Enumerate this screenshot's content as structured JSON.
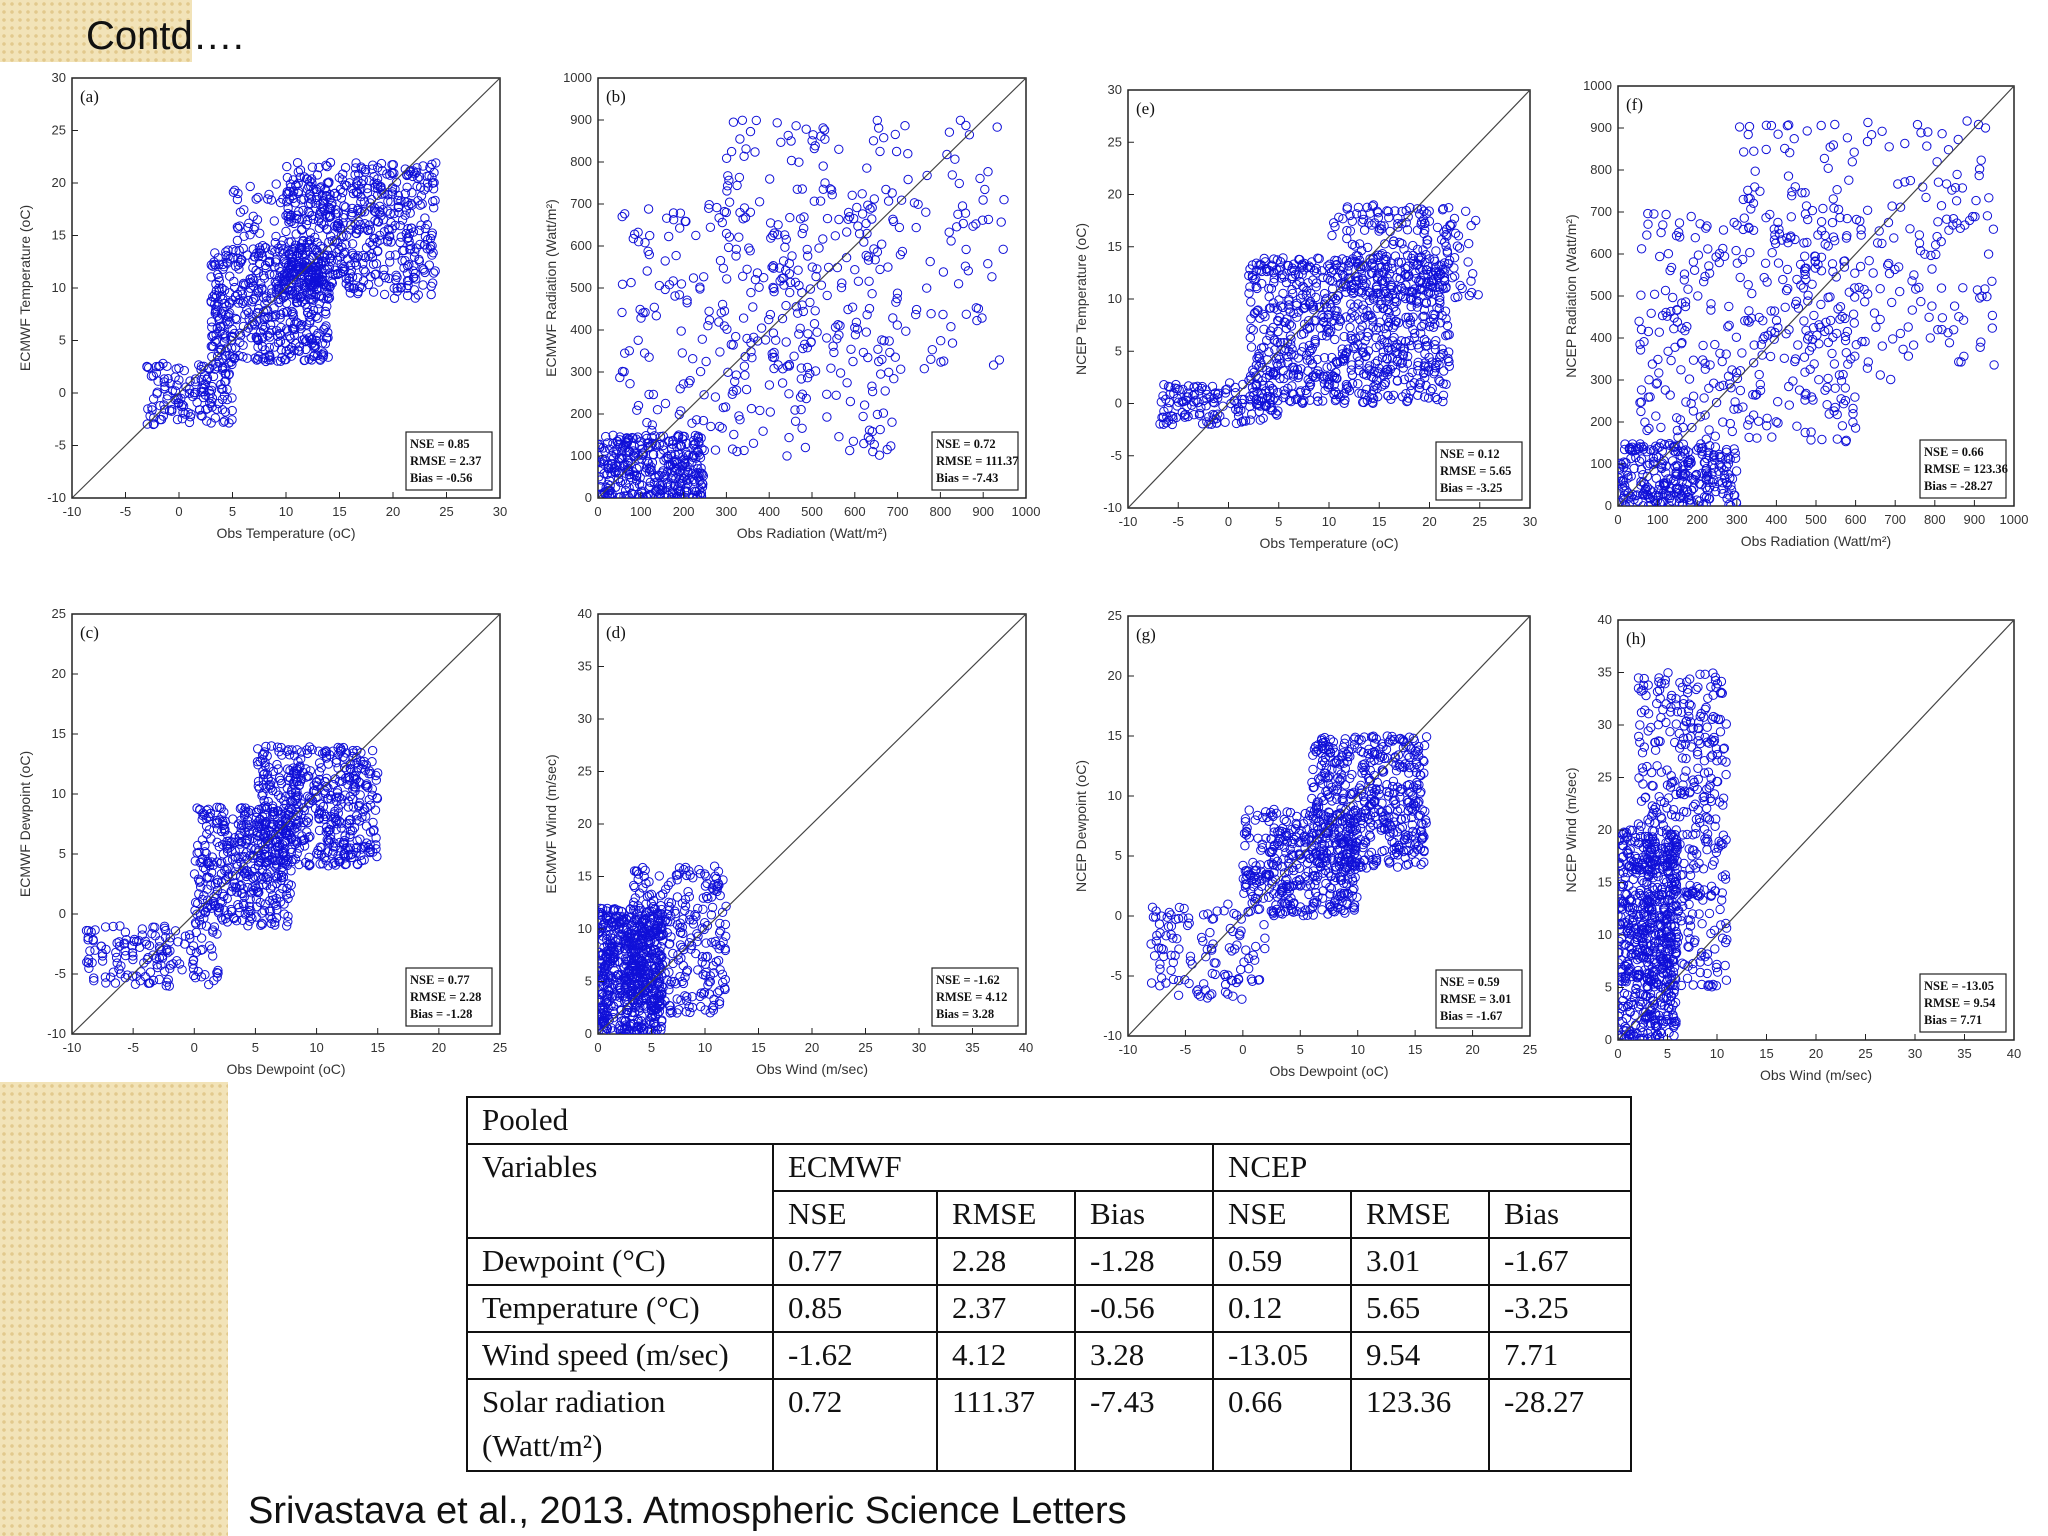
{
  "slide": {
    "title": "Contd….",
    "citation": "Srivastava et al., 2013.  Atmospheric Science Letters"
  },
  "chart_data": [
    {
      "id": "a",
      "type": "scatter",
      "panel_label": "(a)",
      "xlabel": "Obs Temperature (oC)",
      "ylabel": "ECMWF Temperature (oC)",
      "xlim": [
        -10,
        30
      ],
      "ylim": [
        -10,
        30
      ],
      "xticks": [
        -10,
        -5,
        0,
        5,
        10,
        15,
        20,
        25,
        30
      ],
      "yticks": [
        -10,
        -5,
        0,
        5,
        10,
        15,
        20,
        25,
        30
      ],
      "one_to_one_line": true,
      "marker_color": "#1010d8",
      "stats": [
        "NSE = 0.85",
        "RMSE = 2.37",
        "Bias = -0.56"
      ],
      "clusters": [
        {
          "x": [
            -3,
            5
          ],
          "y": [
            -3,
            3
          ],
          "n": 150
        },
        {
          "x": [
            3,
            14
          ],
          "y": [
            3,
            14
          ],
          "n": 500
        },
        {
          "x": [
            10,
            24
          ],
          "y": [
            9,
            22
          ],
          "n": 500
        },
        {
          "x": [
            5,
            18
          ],
          "y": [
            10,
            20
          ],
          "n": 150
        }
      ]
    },
    {
      "id": "b",
      "type": "scatter",
      "panel_label": "(b)",
      "xlabel": "Obs Radiation (Watt/m²)",
      "ylabel": "ECMWF Radiation (Watt/m²)",
      "xlim": [
        0,
        1000
      ],
      "ylim": [
        0,
        1000
      ],
      "xticks": [
        0,
        100,
        200,
        300,
        400,
        500,
        600,
        700,
        800,
        900,
        1000
      ],
      "yticks": [
        0,
        100,
        200,
        300,
        400,
        500,
        600,
        700,
        800,
        900,
        1000
      ],
      "one_to_one_line": true,
      "marker_color": "#1010d8",
      "stats": [
        "NSE = 0.72",
        "RMSE = 111.37",
        "Bias = -7.43"
      ],
      "clusters": [
        {
          "x": [
            0,
            250
          ],
          "y": [
            0,
            150
          ],
          "n": 350
        },
        {
          "x": [
            50,
            700
          ],
          "y": [
            100,
            700
          ],
          "n": 300
        },
        {
          "x": [
            300,
            950
          ],
          "y": [
            300,
            900
          ],
          "n": 200
        }
      ]
    },
    {
      "id": "c",
      "type": "scatter",
      "panel_label": "(c)",
      "xlabel": "Obs Dewpoint (oC)",
      "ylabel": "ECMWF Dewpoint (oC)",
      "xlim": [
        -10,
        25
      ],
      "ylim": [
        -10,
        25
      ],
      "xticks": [
        -10,
        -5,
        0,
        5,
        10,
        15,
        20,
        25
      ],
      "yticks": [
        -10,
        -5,
        0,
        5,
        10,
        15,
        20,
        25
      ],
      "one_to_one_line": true,
      "marker_color": "#1010d8",
      "stats": [
        "NSE = 0.77",
        "RMSE = 2.28",
        "Bias = -1.28"
      ],
      "clusters": [
        {
          "x": [
            -9,
            2
          ],
          "y": [
            -6,
            -1
          ],
          "n": 150
        },
        {
          "x": [
            0,
            8
          ],
          "y": [
            -1,
            9
          ],
          "n": 400
        },
        {
          "x": [
            5,
            15
          ],
          "y": [
            4,
            14
          ],
          "n": 500
        }
      ]
    },
    {
      "id": "d",
      "type": "scatter",
      "panel_label": "(d)",
      "xlabel": "Obs Wind (m/sec)",
      "ylabel": "ECMWF Wind (m/sec)",
      "xlim": [
        0,
        40
      ],
      "ylim": [
        0,
        40
      ],
      "xticks": [
        0,
        5,
        10,
        15,
        20,
        25,
        30,
        35,
        40
      ],
      "yticks": [
        0,
        5,
        10,
        15,
        20,
        25,
        30,
        35,
        40
      ],
      "one_to_one_line": true,
      "marker_color": "#1010d8",
      "stats": [
        "NSE = -1.62",
        "RMSE = 4.12",
        "Bias = 3.28"
      ],
      "clusters": [
        {
          "x": [
            0,
            6
          ],
          "y": [
            0,
            12
          ],
          "n": 600
        },
        {
          "x": [
            3,
            12
          ],
          "y": [
            2,
            16
          ],
          "n": 300
        }
      ]
    },
    {
      "id": "e",
      "type": "scatter",
      "panel_label": "(e)",
      "xlabel": "Obs Temperature (oC)",
      "ylabel": "NCEP Temperature (oC)",
      "xlim": [
        -10,
        30
      ],
      "ylim": [
        -10,
        30
      ],
      "xticks": [
        -10,
        -5,
        0,
        5,
        10,
        15,
        20,
        25,
        30
      ],
      "yticks": [
        -10,
        -5,
        0,
        5,
        10,
        15,
        20,
        25,
        30
      ],
      "one_to_one_line": true,
      "marker_color": "#1010d8",
      "stats": [
        "NSE = 0.12",
        "RMSE = 5.65",
        "Bias = -3.25"
      ],
      "clusters": [
        {
          "x": [
            -7,
            5
          ],
          "y": [
            -2,
            2
          ],
          "n": 150
        },
        {
          "x": [
            2,
            22
          ],
          "y": [
            0,
            14
          ],
          "n": 800
        },
        {
          "x": [
            10,
            25
          ],
          "y": [
            10,
            19
          ],
          "n": 200
        }
      ]
    },
    {
      "id": "f",
      "type": "scatter",
      "panel_label": "(f)",
      "xlabel": "Obs Radiation (Watt/m²)",
      "ylabel": "NCEP Radiation (Watt/m²)",
      "xlim": [
        0,
        1000
      ],
      "ylim": [
        0,
        1000
      ],
      "xticks": [
        0,
        100,
        200,
        300,
        400,
        500,
        600,
        700,
        800,
        900,
        1000
      ],
      "yticks": [
        0,
        100,
        200,
        300,
        400,
        500,
        600,
        700,
        800,
        900,
        1000
      ],
      "one_to_one_line": true,
      "marker_color": "#1010d8",
      "stats": [
        "NSE = 0.66",
        "RMSE = 123.36",
        "Bias = -28.27"
      ],
      "clusters": [
        {
          "x": [
            0,
            300
          ],
          "y": [
            0,
            150
          ],
          "n": 300
        },
        {
          "x": [
            50,
            600
          ],
          "y": [
            150,
            700
          ],
          "n": 300
        },
        {
          "x": [
            300,
            950
          ],
          "y": [
            300,
            920
          ],
          "n": 250
        }
      ]
    },
    {
      "id": "g",
      "type": "scatter",
      "panel_label": "(g)",
      "xlabel": "Obs Dewpoint (oC)",
      "ylabel": "NCEP Dewpoint (oC)",
      "xlim": [
        -10,
        25
      ],
      "ylim": [
        -10,
        25
      ],
      "xticks": [
        -10,
        -5,
        0,
        5,
        10,
        15,
        20,
        25
      ],
      "yticks": [
        -10,
        -5,
        0,
        5,
        10,
        15,
        20,
        25
      ],
      "one_to_one_line": true,
      "marker_color": "#1010d8",
      "stats": [
        "NSE = 0.59",
        "RMSE = 3.01",
        "Bias = -1.67"
      ],
      "clusters": [
        {
          "x": [
            -8,
            2
          ],
          "y": [
            -7,
            1
          ],
          "n": 120
        },
        {
          "x": [
            0,
            10
          ],
          "y": [
            0,
            9
          ],
          "n": 400
        },
        {
          "x": [
            6,
            16
          ],
          "y": [
            4,
            15
          ],
          "n": 500
        }
      ]
    },
    {
      "id": "h",
      "type": "scatter",
      "panel_label": "(h)",
      "xlabel": "Obs Wind (m/sec)",
      "ylabel": "NCEP Wind (m/sec)",
      "xlim": [
        0,
        40
      ],
      "ylim": [
        0,
        40
      ],
      "xticks": [
        0,
        5,
        10,
        15,
        20,
        25,
        30,
        35,
        40
      ],
      "yticks": [
        0,
        5,
        10,
        15,
        20,
        25,
        30,
        35,
        40
      ],
      "one_to_one_line": true,
      "marker_color": "#1010d8",
      "stats": [
        "NSE = -13.05",
        "RMSE = 9.54",
        "Bias = 7.71"
      ],
      "clusters": [
        {
          "x": [
            0,
            6
          ],
          "y": [
            0,
            20
          ],
          "n": 600
        },
        {
          "x": [
            2,
            11
          ],
          "y": [
            5,
            35
          ],
          "n": 450
        }
      ]
    }
  ],
  "table": {
    "caption": "Pooled",
    "variables_header": "Variables",
    "groups": [
      "ECMWF",
      "NCEP"
    ],
    "metrics": [
      "NSE",
      "RMSE",
      "Bias",
      "NSE",
      "RMSE",
      "Bias"
    ],
    "rows": [
      {
        "variable": "Dewpoint (°C)",
        "unit": "",
        "values": [
          "0.77",
          "2.28",
          "-1.28",
          "0.59",
          "3.01",
          "-1.67"
        ]
      },
      {
        "variable": "Temperature (°C)",
        "unit": "",
        "values": [
          "0.85",
          "2.37",
          "-0.56",
          "0.12",
          "5.65",
          "-3.25"
        ]
      },
      {
        "variable": "Wind speed (m/sec)",
        "unit": "",
        "values": [
          "-1.62",
          "4.12",
          "3.28",
          "-13.05",
          "9.54",
          "7.71"
        ]
      },
      {
        "variable": "Solar radiation",
        "unit": "(Watt/m²)",
        "values": [
          "0.72",
          "111.37",
          "-7.43",
          "0.66",
          "123.36",
          "-28.27"
        ]
      }
    ]
  }
}
